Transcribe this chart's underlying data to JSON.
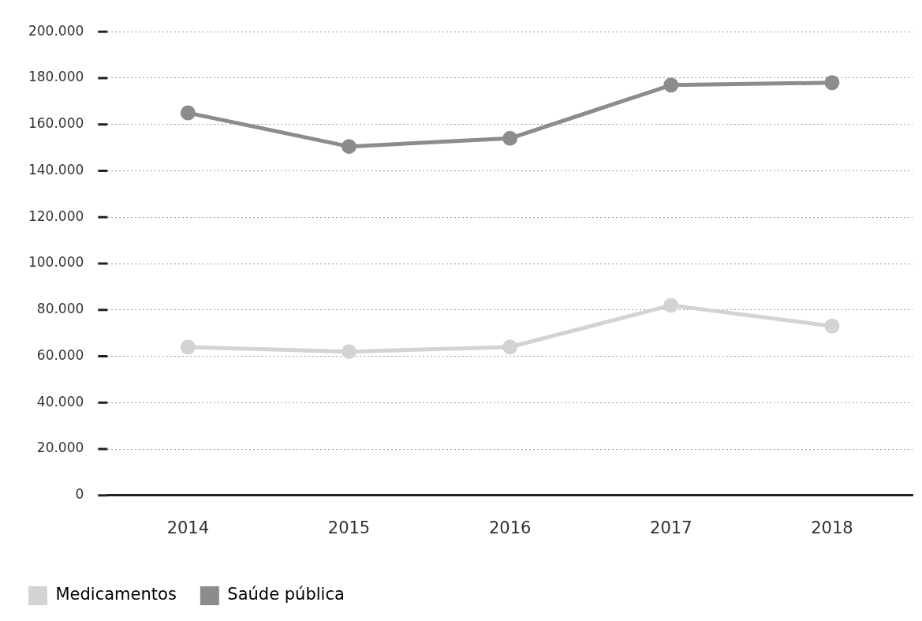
{
  "chart_data": {
    "type": "line",
    "categories": [
      "2014",
      "2015",
      "2016",
      "2017",
      "2018"
    ],
    "series": [
      {
        "name": "Medicamentos",
        "color": "#d3d3d3",
        "values": [
          64000,
          62000,
          64000,
          82000,
          73000
        ]
      },
      {
        "name": "Saúde pública",
        "color": "#8c8c8c",
        "values": [
          165000,
          150500,
          154000,
          177000,
          178000
        ]
      }
    ],
    "ylim": [
      0,
      200000
    ],
    "yticks": [
      {
        "value": 0,
        "label": "0"
      },
      {
        "value": 20000,
        "label": "20.000"
      },
      {
        "value": 40000,
        "label": "40.000"
      },
      {
        "value": 60000,
        "label": "60.000"
      },
      {
        "value": 80000,
        "label": "80.000"
      },
      {
        "value": 100000,
        "label": "100.000"
      },
      {
        "value": 120000,
        "label": "120.000"
      },
      {
        "value": 140000,
        "label": "140.000"
      },
      {
        "value": 160000,
        "label": "160.000"
      },
      {
        "value": 180000,
        "label": "180.000"
      },
      {
        "value": 200000,
        "label": "200.000"
      }
    ],
    "grid": "y",
    "legend": "bottom left",
    "marker": "circle",
    "line_style": "solid"
  }
}
